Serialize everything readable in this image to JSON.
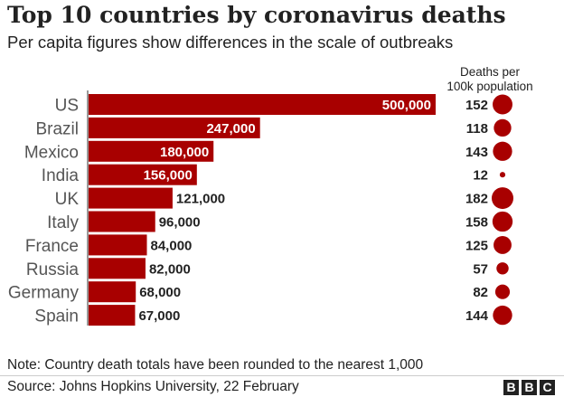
{
  "title": "Top 10 countries by coronavirus deaths",
  "subtitle": "Per capita figures show differences in the scale of outbreaks",
  "deaths_header": [
    "Deaths per",
    "100k population"
  ],
  "note": "Note: Country death totals have been rounded to the nearest 1,000",
  "source": "Source: Johns Hopkins University, 22 February",
  "logo": [
    "B",
    "B",
    "C"
  ],
  "colors": {
    "bar": "#a80000",
    "text": "#222222",
    "axis": "#333333"
  },
  "chart_data": {
    "type": "bar",
    "orientation": "horizontal",
    "categories": [
      "US",
      "Brazil",
      "Mexico",
      "India",
      "UK",
      "Italy",
      "France",
      "Russia",
      "Germany",
      "Spain"
    ],
    "values": [
      500000,
      247000,
      180000,
      156000,
      121000,
      96000,
      84000,
      82000,
      68000,
      67000
    ],
    "value_labels": [
      "500,000",
      "247,000",
      "180,000",
      "156,000",
      "121,000",
      "96,000",
      "84,000",
      "82,000",
      "68,000",
      "67,000"
    ],
    "per_capita": [
      152,
      118,
      143,
      12,
      182,
      158,
      125,
      57,
      82,
      144
    ],
    "xlim": [
      0,
      500000
    ]
  }
}
